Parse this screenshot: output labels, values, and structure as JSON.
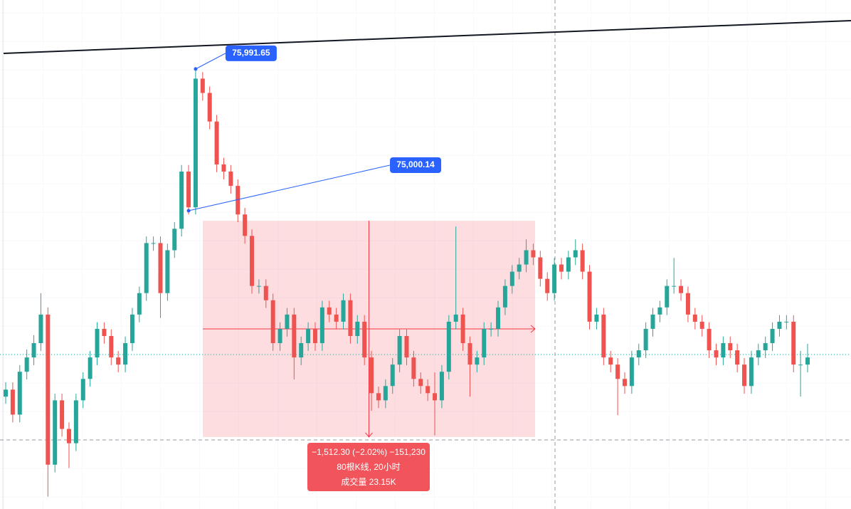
{
  "chart_data": {
    "type": "candlestick",
    "ylim": [
      72914,
      76474
    ],
    "up_color": "#26a69a",
    "down_color": "#ef5350",
    "candles": [
      [
        73700,
        73800,
        73650,
        73749
      ],
      [
        73749,
        73800,
        73520,
        73574
      ],
      [
        73574,
        73920,
        73520,
        73874
      ],
      [
        73874,
        74030,
        73820,
        73974
      ],
      [
        73974,
        74130,
        73920,
        74074
      ],
      [
        74074,
        74424,
        74020,
        74274
      ],
      [
        74274,
        74324,
        73000,
        73224
      ],
      [
        73224,
        73720,
        73170,
        73674
      ],
      [
        73674,
        73720,
        73420,
        73474
      ],
      [
        73474,
        73520,
        73200,
        73374
      ],
      [
        73374,
        73720,
        73320,
        73674
      ],
      [
        73674,
        73870,
        73620,
        73824
      ],
      [
        73824,
        74020,
        73770,
        73974
      ],
      [
        73974,
        74220,
        73920,
        74174
      ],
      [
        74174,
        74220,
        74070,
        74124
      ],
      [
        74124,
        74170,
        73920,
        73974
      ],
      [
        73974,
        74020,
        73870,
        73924
      ],
      [
        73924,
        74120,
        73870,
        74074
      ],
      [
        74074,
        74320,
        74020,
        74274
      ],
      [
        74274,
        74470,
        74220,
        74424
      ],
      [
        74424,
        74820,
        74370,
        74774
      ],
      [
        74774,
        74820,
        74720,
        74774
      ],
      [
        74774,
        74820,
        74250,
        74424
      ],
      [
        74424,
        74770,
        74370,
        74724
      ],
      [
        74724,
        74920,
        74670,
        74874
      ],
      [
        74874,
        75320,
        74820,
        75274
      ],
      [
        75274,
        75320,
        74974,
        75024
      ],
      [
        75024,
        75991.65,
        74974,
        75924
      ],
      [
        75924,
        75970,
        75770,
        75824
      ],
      [
        75824,
        75870,
        75570,
        75624
      ],
      [
        75624,
        75670,
        75270,
        75324
      ],
      [
        75324,
        75370,
        75220,
        75274
      ],
      [
        75274,
        75320,
        75120,
        75174
      ],
      [
        75174,
        75220,
        74920,
        74974
      ],
      [
        74974,
        75020,
        74770,
        74824
      ],
      [
        74824,
        74870,
        74420,
        74474
      ],
      [
        74474,
        74520,
        74420,
        74474
      ],
      [
        74474,
        74520,
        74320,
        74374
      ],
      [
        74374,
        74420,
        74020,
        74074
      ],
      [
        74074,
        74220,
        74020,
        74174
      ],
      [
        74174,
        74320,
        74120,
        74274
      ],
      [
        74274,
        74320,
        73820,
        73974
      ],
      [
        73974,
        74120,
        73920,
        74074
      ],
      [
        74074,
        74220,
        74020,
        74174
      ],
      [
        74174,
        74220,
        74020,
        74074
      ],
      [
        74074,
        74370,
        74020,
        74324
      ],
      [
        74324,
        74370,
        74220,
        74274
      ],
      [
        74274,
        74320,
        74170,
        74224
      ],
      [
        74224,
        74420,
        74170,
        74374
      ],
      [
        74374,
        74420,
        74070,
        74124
      ],
      [
        74124,
        74270,
        74070,
        74224
      ],
      [
        74224,
        74270,
        73920,
        73974
      ],
      [
        73974,
        74020,
        73600,
        73724
      ],
      [
        73724,
        73770,
        73620,
        73674
      ],
      [
        73674,
        73820,
        73620,
        73774
      ],
      [
        73774,
        73970,
        73720,
        73924
      ],
      [
        73924,
        74170,
        73870,
        74124
      ],
      [
        74124,
        74170,
        73920,
        73974
      ],
      [
        73974,
        74020,
        73770,
        73824
      ],
      [
        73824,
        73870,
        73720,
        73774
      ],
      [
        73774,
        73820,
        73670,
        73724
      ],
      [
        73724,
        73870,
        73430,
        73674
      ],
      [
        73674,
        73920,
        73620,
        73874
      ],
      [
        73874,
        74270,
        73820,
        74224
      ],
      [
        74224,
        74890,
        74170,
        74274
      ],
      [
        74274,
        74320,
        74020,
        74074
      ],
      [
        74074,
        74120,
        73700,
        73924
      ],
      [
        73924,
        74020,
        73870,
        73974
      ],
      [
        73974,
        74220,
        73920,
        74174
      ],
      [
        74174,
        74220,
        74120,
        74174
      ],
      [
        74174,
        74370,
        74120,
        74324
      ],
      [
        74324,
        74520,
        74270,
        74474
      ],
      [
        74474,
        74620,
        74420,
        74574
      ],
      [
        74574,
        74670,
        74520,
        74624
      ],
      [
        74624,
        74800,
        74570,
        74724
      ],
      [
        74724,
        74770,
        74620,
        74674
      ],
      [
        74674,
        74720,
        74470,
        74524
      ],
      [
        74524,
        74570,
        74370,
        74424
      ],
      [
        74424,
        74670,
        74370,
        74624
      ],
      [
        74624,
        74670,
        74520,
        74574
      ],
      [
        74574,
        74720,
        74520,
        74674
      ],
      [
        74674,
        74800,
        74620,
        74724
      ],
      [
        74724,
        74770,
        74520,
        74574
      ],
      [
        74574,
        74620,
        74170,
        74224
      ],
      [
        74224,
        74320,
        74170,
        74274
      ],
      [
        74274,
        74320,
        73920,
        73974
      ],
      [
        73974,
        74020,
        73870,
        73924
      ],
      [
        73924,
        73970,
        73570,
        73824
      ],
      [
        73824,
        73870,
        73720,
        73774
      ],
      [
        73774,
        74020,
        73720,
        73974
      ],
      [
        73974,
        74070,
        73920,
        74024
      ],
      [
        74024,
        74220,
        73970,
        74174
      ],
      [
        74174,
        74320,
        74120,
        74274
      ],
      [
        74274,
        74370,
        74220,
        74324
      ],
      [
        74324,
        74520,
        74270,
        74474
      ],
      [
        74474,
        74670,
        74420,
        74474
      ],
      [
        74474,
        74520,
        74370,
        74424
      ],
      [
        74424,
        74470,
        74220,
        74274
      ],
      [
        74274,
        74320,
        74170,
        74224
      ],
      [
        74224,
        74270,
        74120,
        74174
      ],
      [
        74174,
        74220,
        73970,
        74024
      ],
      [
        74024,
        74070,
        73920,
        73974
      ],
      [
        73974,
        74120,
        73920,
        74074
      ],
      [
        74074,
        74120,
        73970,
        74024
      ],
      [
        74024,
        74070,
        73870,
        73924
      ],
      [
        73924,
        73970,
        73720,
        73774
      ],
      [
        73774,
        74020,
        73720,
        73974
      ],
      [
        73974,
        74070,
        73920,
        74024
      ],
      [
        74024,
        74120,
        73970,
        74074
      ],
      [
        74074,
        74220,
        74020,
        74174
      ],
      [
        74174,
        74270,
        74120,
        74224
      ],
      [
        74224,
        74270,
        74170,
        74224
      ],
      [
        74224,
        74270,
        73870,
        73924
      ],
      [
        73924,
        74020,
        73700,
        73924
      ],
      [
        73924,
        74070,
        73870,
        73974
      ]
    ],
    "price_labels": [
      {
        "value": 75991.65,
        "label": "75,991.65"
      },
      {
        "value": 75000.14,
        "label": "75,000.14"
      }
    ],
    "measure": {
      "from": 74930,
      "to": 73417.7,
      "lines": [
        "−1,512.30 (−2.02%) −151,230",
        "80根K线, 20小时",
        "成交量 23.15K"
      ]
    }
  }
}
